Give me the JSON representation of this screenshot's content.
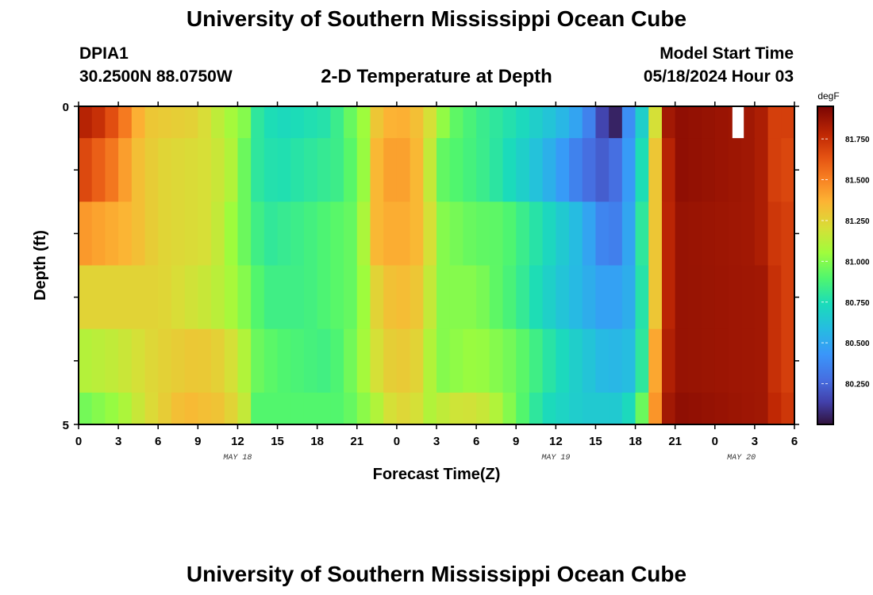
{
  "header": {
    "title": "University of Southern Mississippi Ocean Cube",
    "station_id": "DPIA1",
    "coords": "30.2500N  88.0750W",
    "plot_title": "2-D Temperature at Depth",
    "start_label": "Model Start Time",
    "start_value": "05/18/2024 Hour 03"
  },
  "footer": {
    "title": "University of Southern Mississippi Ocean Cube"
  },
  "chart_data": {
    "type": "heatmap",
    "title": "2-D Temperature at Depth",
    "xlabel": "Forecast Time(Z)",
    "ylabel": "Depth (ft)",
    "units": "degF",
    "x_hours_since_may18_00z": [
      0,
      54
    ],
    "x_tick_labels": [
      "0",
      "3",
      "6",
      "9",
      "12",
      "15",
      "18",
      "21",
      "0",
      "3",
      "6",
      "9",
      "12",
      "15",
      "18",
      "21",
      "0",
      "3",
      "6"
    ],
    "x_date_labels": [
      {
        "label": "MAY 18",
        "at_hour": 12
      },
      {
        "label": "MAY 19",
        "at_hour": 36
      },
      {
        "label": "MAY 20",
        "at_hour": 50
      }
    ],
    "y_range": [
      0,
      5
    ],
    "y_tick_labels": [
      "0",
      "5"
    ],
    "y_reversed": true,
    "colorbar": {
      "min": 80.0,
      "max": 81.95,
      "ticks": [
        "81.750",
        "81.500",
        "81.250",
        "81.000",
        "80.750",
        "80.500",
        "80.250"
      ],
      "tick_values": [
        81.75,
        81.5,
        81.25,
        81.0,
        80.75,
        80.5,
        80.25
      ]
    },
    "row_bands": [
      {
        "depth_from": 0.0,
        "depth_to": 0.5
      },
      {
        "depth_from": 0.5,
        "depth_to": 1.5
      },
      {
        "depth_from": 1.5,
        "depth_to": 2.5
      },
      {
        "depth_from": 2.5,
        "depth_to": 3.5
      },
      {
        "depth_from": 3.5,
        "depth_to": 4.5
      },
      {
        "depth_from": 4.5,
        "depth_to": 5.0
      }
    ],
    "rows": [
      [
        [
          0,
          81.8
        ],
        [
          1,
          81.8
        ],
        [
          3,
          81.6
        ],
        [
          5,
          81.3
        ],
        [
          9,
          81.25
        ],
        [
          11,
          81.1
        ],
        [
          12.5,
          81.0
        ],
        [
          13.5,
          80.8
        ],
        [
          15,
          80.72
        ],
        [
          19,
          80.78
        ],
        [
          21.5,
          81.05
        ],
        [
          22.5,
          81.3
        ],
        [
          24,
          81.4
        ],
        [
          26,
          81.3
        ],
        [
          27,
          81.1
        ],
        [
          28,
          80.95
        ],
        [
          30,
          80.85
        ],
        [
          33,
          80.75
        ],
        [
          36,
          80.6
        ],
        [
          38,
          80.45
        ],
        [
          39,
          80.25
        ],
        [
          40,
          80.05
        ],
        [
          40.5,
          80.05
        ],
        [
          41,
          80.3
        ],
        [
          42,
          80.5
        ],
        [
          43,
          80.85
        ],
        [
          43.5,
          81.2
        ],
        [
          44,
          81.6
        ],
        [
          44.5,
          81.85
        ],
        [
          45,
          81.9
        ],
        [
          51,
          81.85
        ],
        [
          52,
          81.8
        ],
        [
          53,
          81.6
        ],
        [
          54,
          81.8
        ]
      ],
      [
        [
          0,
          81.7
        ],
        [
          3,
          81.5
        ],
        [
          4,
          81.35
        ],
        [
          6,
          81.25
        ],
        [
          10,
          81.2
        ],
        [
          11.5,
          81.1
        ],
        [
          12.5,
          80.95
        ],
        [
          13.5,
          80.8
        ],
        [
          15,
          80.75
        ],
        [
          20,
          80.85
        ],
        [
          22,
          81.1
        ],
        [
          22.5,
          81.35
        ],
        [
          24,
          81.45
        ],
        [
          25.5,
          81.35
        ],
        [
          26.5,
          81.15
        ],
        [
          27,
          80.95
        ],
        [
          29,
          80.88
        ],
        [
          31,
          80.82
        ],
        [
          34,
          80.65
        ],
        [
          36,
          80.5
        ],
        [
          38,
          80.3
        ],
        [
          40,
          80.2
        ],
        [
          41,
          80.35
        ],
        [
          42,
          80.55
        ],
        [
          43,
          80.95
        ],
        [
          43.5,
          81.3
        ],
        [
          44,
          81.7
        ],
        [
          45,
          81.9
        ],
        [
          51,
          81.85
        ],
        [
          52,
          81.8
        ],
        [
          53,
          81.6
        ],
        [
          54,
          81.75
        ]
      ],
      [
        [
          0,
          81.45
        ],
        [
          4,
          81.35
        ],
        [
          6,
          81.25
        ],
        [
          10,
          81.2
        ],
        [
          11.5,
          81.05
        ],
        [
          13,
          80.9
        ],
        [
          14,
          80.8
        ],
        [
          17,
          80.85
        ],
        [
          21,
          80.95
        ],
        [
          22.5,
          81.35
        ],
        [
          24,
          81.4
        ],
        [
          25.5,
          81.35
        ],
        [
          26.5,
          81.2
        ],
        [
          27.5,
          81.0
        ],
        [
          30,
          80.93
        ],
        [
          32,
          80.92
        ],
        [
          35,
          80.75
        ],
        [
          38,
          80.55
        ],
        [
          40,
          80.3
        ],
        [
          41,
          80.38
        ],
        [
          42,
          80.6
        ],
        [
          43,
          81.0
        ],
        [
          43.5,
          81.3
        ],
        [
          44,
          81.7
        ],
        [
          45,
          81.88
        ],
        [
          51,
          81.85
        ],
        [
          52,
          81.8
        ],
        [
          53,
          81.65
        ],
        [
          54,
          81.75
        ]
      ],
      [
        [
          0,
          81.25
        ],
        [
          6,
          81.25
        ],
        [
          10,
          81.15
        ],
        [
          12,
          81.05
        ],
        [
          13,
          80.95
        ],
        [
          14,
          80.85
        ],
        [
          17,
          80.85
        ],
        [
          21,
          80.95
        ],
        [
          22.5,
          81.25
        ],
        [
          24,
          81.35
        ],
        [
          25.5,
          81.3
        ],
        [
          26.5,
          81.15
        ],
        [
          27.5,
          81.0
        ],
        [
          30,
          81.0
        ],
        [
          33,
          80.85
        ],
        [
          36,
          80.65
        ],
        [
          40,
          80.45
        ],
        [
          42,
          80.55
        ],
        [
          43,
          81.0
        ],
        [
          43.5,
          81.3
        ],
        [
          44,
          81.7
        ],
        [
          45,
          81.88
        ],
        [
          52,
          81.85
        ],
        [
          53,
          81.65
        ],
        [
          54,
          81.75
        ]
      ],
      [
        [
          0,
          81.1
        ],
        [
          3,
          81.15
        ],
        [
          6,
          81.25
        ],
        [
          9,
          81.3
        ],
        [
          11,
          81.25
        ],
        [
          12.5,
          81.1
        ],
        [
          13.5,
          80.95
        ],
        [
          15,
          80.9
        ],
        [
          19,
          80.85
        ],
        [
          21,
          81.0
        ],
        [
          22.5,
          81.2
        ],
        [
          24,
          81.3
        ],
        [
          25.5,
          81.25
        ],
        [
          26.5,
          81.1
        ],
        [
          27.5,
          81.0
        ],
        [
          30,
          81.05
        ],
        [
          33,
          80.95
        ],
        [
          36,
          80.75
        ],
        [
          40,
          80.55
        ],
        [
          42,
          80.6
        ],
        [
          43,
          81.0
        ],
        [
          43.5,
          81.4
        ],
        [
          44,
          81.75
        ],
        [
          45,
          81.88
        ],
        [
          52,
          81.85
        ],
        [
          53,
          81.65
        ],
        [
          54,
          81.75
        ]
      ],
      [
        [
          0,
          80.95
        ],
        [
          3,
          81.05
        ],
        [
          5,
          81.2
        ],
        [
          8,
          81.35
        ],
        [
          11,
          81.3
        ],
        [
          12.5,
          81.15
        ],
        [
          13.5,
          80.9
        ],
        [
          15,
          80.9
        ],
        [
          20,
          80.9
        ],
        [
          22,
          81.05
        ],
        [
          24,
          81.25
        ],
        [
          25.5,
          81.2
        ],
        [
          26.5,
          81.1
        ],
        [
          29,
          81.2
        ],
        [
          31,
          81.15
        ],
        [
          33,
          80.95
        ],
        [
          35,
          80.75
        ],
        [
          38,
          80.65
        ],
        [
          41,
          80.65
        ],
        [
          42,
          80.8
        ],
        [
          43,
          81.1
        ],
        [
          43.5,
          81.45
        ],
        [
          44,
          81.8
        ],
        [
          45,
          81.9
        ],
        [
          52,
          81.85
        ],
        [
          53,
          81.7
        ],
        [
          54,
          81.75
        ]
      ]
    ],
    "missing_data": [
      {
        "hour_from": 49.5,
        "hour_to": 50.0,
        "depth_from": 0.0,
        "depth_to": 0.5
      }
    ]
  }
}
